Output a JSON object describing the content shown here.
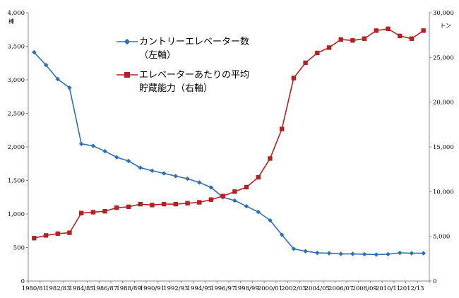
{
  "chart_data": {
    "type": "line",
    "title": "",
    "x": [
      "1980/81",
      "1981/82",
      "1982/83",
      "1983/84",
      "1984/85",
      "1985/86",
      "1986/87",
      "1987/88",
      "1988/89",
      "1989/90",
      "1990/91",
      "1991/92",
      "1992/93",
      "1993/94",
      "1994/95",
      "1995/96",
      "1996/97",
      "1997/98",
      "1998/99",
      "1999/00",
      "2000/01",
      "2001/02",
      "2002/03",
      "2003/04",
      "2004/05",
      "2005/06",
      "2006/07",
      "2007/08",
      "2008/09",
      "2009/10",
      "2010/11",
      "2011/12",
      "2012/13",
      "2013/14"
    ],
    "x_tick_labels": [
      "1980/81",
      "1982/83",
      "1984/85",
      "1986/87",
      "1988/89",
      "1990/91",
      "1992/93",
      "1994/95",
      "1996/97",
      "1998/99",
      "2000/01",
      "2002/03",
      "2004/05",
      "2006/07",
      "2008/09",
      "2010/11",
      "2012/13"
    ],
    "left_axis": {
      "unit": "棟",
      "ylim": [
        0,
        4000
      ],
      "ticks": [
        "0",
        "500",
        "1,000",
        "1,500",
        "2,000",
        "2,500",
        "3,000",
        "3,500",
        "4,000"
      ]
    },
    "right_axis": {
      "unit": "トン",
      "ylim": [
        0,
        30000
      ],
      "ticks": [
        "0",
        "5,000",
        "10,000",
        "15,000",
        "20,000",
        "25,000",
        "30,000"
      ]
    },
    "series": [
      {
        "name": "カントリーエレベーター数",
        "name_line2": "（左軸）",
        "axis": "left",
        "color": "#2e6fb5",
        "marker": "diamond",
        "values": [
          3410,
          3220,
          3010,
          2880,
          2045,
          2015,
          1935,
          1845,
          1790,
          1690,
          1645,
          1605,
          1565,
          1525,
          1470,
          1395,
          1250,
          1200,
          1115,
          1030,
          905,
          690,
          480,
          445,
          420,
          415,
          405,
          405,
          400,
          395,
          400,
          420,
          415,
          415
        ]
      },
      {
        "name": "エレベーターあたりの平均",
        "name_line2": "貯蔵能力（右軸）",
        "axis": "right",
        "color": "#b22222",
        "marker": "square",
        "values": [
          4800,
          5100,
          5300,
          5400,
          7600,
          7700,
          7800,
          8200,
          8300,
          8600,
          8500,
          8600,
          8600,
          8700,
          8800,
          9100,
          9500,
          10000,
          10500,
          11600,
          13700,
          17000,
          22700,
          24400,
          25500,
          26100,
          27000,
          26900,
          27100,
          28000,
          28200,
          27400,
          27100,
          28000
        ]
      }
    ],
    "legend_position": "center-top",
    "grid": false
  }
}
